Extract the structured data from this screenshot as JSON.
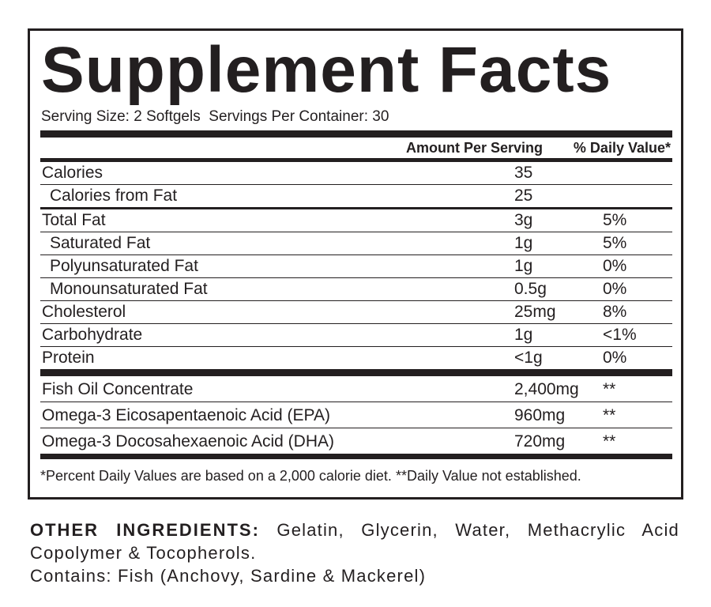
{
  "panel": {
    "title": "Supplement Facts",
    "serving_size": "Serving Size: 2 Softgels",
    "servings_per_container": "Servings Per Container: 30",
    "column_headers": [
      "Amount Per Serving",
      "% Daily Value*"
    ],
    "nutrients": [
      [
        "Calories",
        "35",
        ""
      ],
      [
        "Calories from Fat",
        "25",
        ""
      ],
      [
        "Total Fat",
        "3g",
        "5%"
      ],
      [
        "Saturated Fat",
        "1g",
        "5%"
      ],
      [
        "Polyunsaturated Fat",
        "1g",
        "0%"
      ],
      [
        "Monounsaturated Fat",
        "0.5g",
        "0%"
      ],
      [
        "Cholesterol",
        "25mg",
        "8%"
      ],
      [
        "Carbohydrate",
        "1g",
        "<1%"
      ],
      [
        "Protein",
        "<1g",
        "0%"
      ]
    ],
    "actives": [
      [
        "Fish Oil Concentrate",
        "2,400mg",
        "**"
      ],
      [
        "Omega-3 Eicosapentaenoic Acid (EPA)",
        "960mg",
        "**"
      ],
      [
        "Omega-3 Docosahexaenoic Acid (DHA)",
        "720mg",
        "**"
      ]
    ],
    "footnote": "*Percent Daily Values are based on a 2,000 calorie diet.  **Daily Value not established."
  },
  "ingredients": {
    "label": "OTHER INGREDIENTS:",
    "text": "Gelatin, Glycerin, Water, Methacrylic Acid Copolymer & Tocopherols.",
    "contains": "Contains: Fish (Anchovy, Sardine & Mackerel)"
  }
}
